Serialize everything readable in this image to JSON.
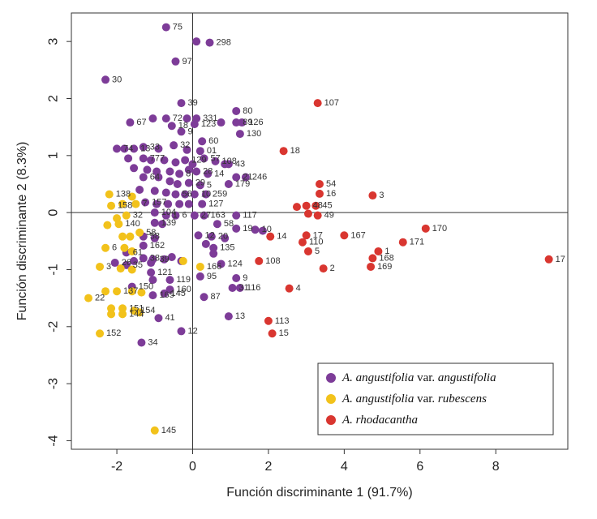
{
  "chart_data": {
    "type": "scatter",
    "xlabel": "Función discriminante 1 (91.7%)",
    "ylabel": "Función discriminante 2 (8.3%)",
    "xlim": [
      -3.2,
      9.9
    ],
    "ylim": [
      -4.15,
      3.5
    ],
    "xticks": [
      -2,
      0,
      2,
      4,
      6,
      8
    ],
    "yticks": [
      3,
      2,
      1,
      0,
      -1,
      -2,
      -3,
      -4
    ],
    "reference_lines": {
      "x": 0,
      "y": 0
    },
    "colors": {
      "purple": "#7d3c98",
      "yellow": "#f2c21b",
      "red": "#d93630"
    },
    "legend": {
      "position": "bottom-right",
      "entries": [
        {
          "color": "#7d3c98",
          "parts": [
            {
              "text": "A. angustifolia",
              "italic": true
            },
            {
              "text": " var. ",
              "italic": false
            },
            {
              "text": "angustifolia",
              "italic": true
            }
          ]
        },
        {
          "color": "#f2c21b",
          "parts": [
            {
              "text": "A. angustifolia",
              "italic": true
            },
            {
              "text": " var. ",
              "italic": false
            },
            {
              "text": "rubescens",
              "italic": true
            }
          ]
        },
        {
          "color": "#d93630",
          "parts": [
            {
              "text": "A. rhodacantha",
              "italic": true
            }
          ]
        }
      ]
    },
    "series": [
      {
        "name": "A. angustifolia var. angustifolia",
        "color": "#7d3c98",
        "points": [
          {
            "x": -0.7,
            "y": 3.25,
            "label": "75"
          },
          {
            "x": 0.1,
            "y": 3.0,
            "label": ""
          },
          {
            "x": 0.45,
            "y": 2.98,
            "label": "298"
          },
          {
            "x": -0.45,
            "y": 2.65,
            "label": "97"
          },
          {
            "x": -2.3,
            "y": 2.33,
            "label": "30"
          },
          {
            "x": -0.3,
            "y": 1.92,
            "label": "39"
          },
          {
            "x": 1.15,
            "y": 1.78,
            "label": "80"
          },
          {
            "x": -1.65,
            "y": 1.58,
            "label": "67"
          },
          {
            "x": -1.05,
            "y": 1.65,
            "label": ""
          },
          {
            "x": -0.7,
            "y": 1.65,
            "label": "72"
          },
          {
            "x": -0.15,
            "y": 1.65,
            "label": ""
          },
          {
            "x": 0.1,
            "y": 1.65,
            "label": "331"
          },
          {
            "x": 0.75,
            "y": 1.58,
            "label": ""
          },
          {
            "x": 1.15,
            "y": 1.58,
            "label": "89"
          },
          {
            "x": 1.3,
            "y": 1.58,
            "label": "126"
          },
          {
            "x": -0.55,
            "y": 1.52,
            "label": "18"
          },
          {
            "x": -0.3,
            "y": 1.42,
            "label": "9"
          },
          {
            "x": 0.05,
            "y": 1.55,
            "label": "123"
          },
          {
            "x": 1.25,
            "y": 1.38,
            "label": "130"
          },
          {
            "x": -2.0,
            "y": 1.12,
            "label": "74"
          },
          {
            "x": -1.8,
            "y": 1.12,
            "label": ""
          },
          {
            "x": -1.55,
            "y": 1.12,
            "label": "13"
          },
          {
            "x": -1.3,
            "y": 1.15,
            "label": "33"
          },
          {
            "x": -0.9,
            "y": 1.12,
            "label": ""
          },
          {
            "x": -0.5,
            "y": 1.18,
            "label": "32"
          },
          {
            "x": -0.15,
            "y": 1.1,
            "label": ""
          },
          {
            "x": 0.25,
            "y": 1.25,
            "label": "60"
          },
          {
            "x": 0.2,
            "y": 1.08,
            "label": "01"
          },
          {
            "x": -1.7,
            "y": 0.95,
            "label": ""
          },
          {
            "x": -1.3,
            "y": 0.95,
            "label": "777"
          },
          {
            "x": -1.1,
            "y": 0.92,
            "label": ""
          },
          {
            "x": -0.75,
            "y": 0.92,
            "label": ""
          },
          {
            "x": -0.45,
            "y": 0.88,
            "label": ""
          },
          {
            "x": -0.2,
            "y": 0.92,
            "label": "129"
          },
          {
            "x": 0.0,
            "y": 0.85,
            "label": ""
          },
          {
            "x": 0.3,
            "y": 0.95,
            "label": "57"
          },
          {
            "x": 0.6,
            "y": 0.9,
            "label": "108"
          },
          {
            "x": 0.85,
            "y": 0.85,
            "label": ""
          },
          {
            "x": 0.95,
            "y": 0.85,
            "label": "43"
          },
          {
            "x": -1.55,
            "y": 0.78,
            "label": ""
          },
          {
            "x": -1.2,
            "y": 0.75,
            "label": ""
          },
          {
            "x": -0.95,
            "y": 0.72,
            "label": ""
          },
          {
            "x": -0.6,
            "y": 0.72,
            "label": ""
          },
          {
            "x": -0.35,
            "y": 0.68,
            "label": "8"
          },
          {
            "x": -0.1,
            "y": 0.75,
            "label": ""
          },
          {
            "x": 0.1,
            "y": 0.72,
            "label": "28"
          },
          {
            "x": 0.4,
            "y": 0.68,
            "label": "14"
          },
          {
            "x": -1.3,
            "y": 0.62,
            "label": "64"
          },
          {
            "x": -0.9,
            "y": 0.62,
            "label": ""
          },
          {
            "x": -0.6,
            "y": 0.55,
            "label": ""
          },
          {
            "x": -0.4,
            "y": 0.5,
            "label": ""
          },
          {
            "x": -0.1,
            "y": 0.52,
            "label": "29"
          },
          {
            "x": 0.2,
            "y": 0.48,
            "label": "5"
          },
          {
            "x": 1.15,
            "y": 0.62,
            "label": "21"
          },
          {
            "x": 1.4,
            "y": 0.62,
            "label": "246"
          },
          {
            "x": 0.95,
            "y": 0.5,
            "label": "179"
          },
          {
            "x": -1.4,
            "y": 0.4,
            "label": ""
          },
          {
            "x": -1.0,
            "y": 0.38,
            "label": ""
          },
          {
            "x": -0.7,
            "y": 0.35,
            "label": ""
          },
          {
            "x": -0.45,
            "y": 0.32,
            "label": "56"
          },
          {
            "x": -0.2,
            "y": 0.32,
            "label": ""
          },
          {
            "x": 0.05,
            "y": 0.32,
            "label": "10"
          },
          {
            "x": 0.35,
            "y": 0.32,
            "label": "259"
          },
          {
            "x": -1.25,
            "y": 0.18,
            "label": "157"
          },
          {
            "x": -0.95,
            "y": 0.15,
            "label": ""
          },
          {
            "x": -0.65,
            "y": 0.15,
            "label": ""
          },
          {
            "x": -0.35,
            "y": 0.15,
            "label": ""
          },
          {
            "x": -0.1,
            "y": 0.15,
            "label": ""
          },
          {
            "x": 0.25,
            "y": 0.15,
            "label": "127"
          },
          {
            "x": -1.0,
            "y": 0.0,
            "label": "104"
          },
          {
            "x": -0.7,
            "y": -0.05,
            "label": "1"
          },
          {
            "x": -0.45,
            "y": -0.05,
            "label": "6"
          },
          {
            "x": 0.05,
            "y": -0.05,
            "label": "27"
          },
          {
            "x": 0.3,
            "y": -0.05,
            "label": "163"
          },
          {
            "x": 1.15,
            "y": -0.05,
            "label": "117"
          },
          {
            "x": -1.0,
            "y": -0.18,
            "label": "139"
          },
          {
            "x": -0.8,
            "y": -0.2,
            "label": ""
          },
          {
            "x": 0.65,
            "y": -0.2,
            "label": "58"
          },
          {
            "x": 1.15,
            "y": -0.28,
            "label": "19"
          },
          {
            "x": 1.65,
            "y": -0.3,
            "label": "10"
          },
          {
            "x": 1.85,
            "y": -0.32,
            "label": ""
          },
          {
            "x": -1.3,
            "y": -0.42,
            "label": "58"
          },
          {
            "x": -1.0,
            "y": -0.45,
            "label": ""
          },
          {
            "x": 0.15,
            "y": -0.4,
            "label": "12"
          },
          {
            "x": 0.5,
            "y": -0.42,
            "label": "20"
          },
          {
            "x": 0.85,
            "y": -0.45,
            "label": ""
          },
          {
            "x": -1.3,
            "y": -0.58,
            "label": "162"
          },
          {
            "x": 0.35,
            "y": -0.55,
            "label": ""
          },
          {
            "x": -1.75,
            "y": -0.7,
            "label": "61"
          },
          {
            "x": -1.3,
            "y": -0.8,
            "label": "38"
          },
          {
            "x": -1.05,
            "y": -0.82,
            "label": "39"
          },
          {
            "x": -0.75,
            "y": -0.82,
            "label": ""
          },
          {
            "x": -2.05,
            "y": -0.88,
            "label": "26"
          },
          {
            "x": -1.55,
            "y": -0.85,
            "label": ""
          },
          {
            "x": -1.75,
            "y": -0.92,
            "label": "35"
          },
          {
            "x": -1.1,
            "y": -0.88,
            "label": ""
          },
          {
            "x": -0.55,
            "y": -0.78,
            "label": ""
          },
          {
            "x": -0.3,
            "y": -0.85,
            "label": ""
          },
          {
            "x": 0.55,
            "y": -0.62,
            "label": "135"
          },
          {
            "x": 0.75,
            "y": -0.9,
            "label": "124"
          },
          {
            "x": 0.55,
            "y": -0.72,
            "label": ""
          },
          {
            "x": -1.1,
            "y": -1.05,
            "label": "121"
          },
          {
            "x": -1.05,
            "y": -1.18,
            "label": ""
          },
          {
            "x": -0.6,
            "y": -1.18,
            "label": "119"
          },
          {
            "x": -1.6,
            "y": -1.3,
            "label": "150"
          },
          {
            "x": -0.6,
            "y": -1.35,
            "label": "160"
          },
          {
            "x": 0.2,
            "y": -1.12,
            "label": "95"
          },
          {
            "x": 1.15,
            "y": -1.15,
            "label": "9"
          },
          {
            "x": 1.05,
            "y": -1.32,
            "label": "31"
          },
          {
            "x": 1.25,
            "y": -1.32,
            "label": "116"
          },
          {
            "x": -1.05,
            "y": -1.45,
            "label": "165"
          },
          {
            "x": -0.75,
            "y": -1.42,
            "label": "145"
          },
          {
            "x": 0.3,
            "y": -1.48,
            "label": "87"
          },
          {
            "x": -0.9,
            "y": -1.85,
            "label": "41"
          },
          {
            "x": 0.95,
            "y": -1.82,
            "label": "13"
          },
          {
            "x": -0.3,
            "y": -2.08,
            "label": "12"
          },
          {
            "x": -1.35,
            "y": -2.28,
            "label": "34"
          }
        ]
      },
      {
        "name": "A. angustifolia var. rubescens",
        "color": "#f2c21b",
        "points": [
          {
            "x": -2.2,
            "y": 0.32,
            "label": "138"
          },
          {
            "x": -2.15,
            "y": 0.12,
            "label": "158"
          },
          {
            "x": -1.85,
            "y": 0.15,
            "label": ""
          },
          {
            "x": -1.5,
            "y": 0.15,
            "label": "7"
          },
          {
            "x": -1.6,
            "y": 0.28,
            "label": ""
          },
          {
            "x": -2.0,
            "y": -0.1,
            "label": ""
          },
          {
            "x": -1.75,
            "y": -0.05,
            "label": "32"
          },
          {
            "x": -1.95,
            "y": -0.2,
            "label": "140"
          },
          {
            "x": -2.25,
            "y": -0.22,
            "label": ""
          },
          {
            "x": -1.85,
            "y": -0.42,
            "label": ""
          },
          {
            "x": -1.65,
            "y": -0.42,
            "label": ""
          },
          {
            "x": -1.4,
            "y": -0.35,
            "label": "58"
          },
          {
            "x": -2.3,
            "y": -0.62,
            "label": "6"
          },
          {
            "x": -1.8,
            "y": -0.62,
            "label": ""
          },
          {
            "x": -1.6,
            "y": -0.68,
            "label": ""
          },
          {
            "x": -2.45,
            "y": -0.95,
            "label": "3"
          },
          {
            "x": -1.9,
            "y": -0.98,
            "label": ""
          },
          {
            "x": -1.6,
            "y": -1.0,
            "label": ""
          },
          {
            "x": -0.25,
            "y": -0.85,
            "label": ""
          },
          {
            "x": 0.2,
            "y": -0.95,
            "label": "166"
          },
          {
            "x": -2.3,
            "y": -1.38,
            "label": ""
          },
          {
            "x": -2.0,
            "y": -1.38,
            "label": "137"
          },
          {
            "x": -1.6,
            "y": -1.38,
            "label": ""
          },
          {
            "x": -1.35,
            "y": -1.4,
            "label": ""
          },
          {
            "x": -2.75,
            "y": -1.5,
            "label": "22"
          },
          {
            "x": -2.15,
            "y": -1.68,
            "label": ""
          },
          {
            "x": -1.85,
            "y": -1.68,
            "label": "151"
          },
          {
            "x": -1.55,
            "y": -1.72,
            "label": "154"
          },
          {
            "x": -2.15,
            "y": -1.78,
            "label": ""
          },
          {
            "x": -1.85,
            "y": -1.78,
            "label": "144"
          },
          {
            "x": -1.4,
            "y": -1.75,
            "label": ""
          },
          {
            "x": -2.45,
            "y": -2.12,
            "label": "152"
          },
          {
            "x": -1.0,
            "y": -3.82,
            "label": "145"
          }
        ]
      },
      {
        "name": "A. rhodacantha",
        "color": "#d93630",
        "points": [
          {
            "x": 3.3,
            "y": 1.92,
            "label": "107"
          },
          {
            "x": 2.4,
            "y": 1.08,
            "label": "18"
          },
          {
            "x": 3.35,
            "y": 0.5,
            "label": "54"
          },
          {
            "x": 3.35,
            "y": 0.33,
            "label": "16"
          },
          {
            "x": 4.75,
            "y": 0.3,
            "label": "3"
          },
          {
            "x": 2.75,
            "y": 0.1,
            "label": ""
          },
          {
            "x": 3.0,
            "y": 0.12,
            "label": "48"
          },
          {
            "x": 3.25,
            "y": 0.12,
            "label": "45"
          },
          {
            "x": 3.05,
            "y": -0.02,
            "label": ""
          },
          {
            "x": 3.3,
            "y": -0.05,
            "label": "49"
          },
          {
            "x": 6.15,
            "y": -0.28,
            "label": "170"
          },
          {
            "x": 2.05,
            "y": -0.42,
            "label": "14"
          },
          {
            "x": 3.0,
            "y": -0.4,
            "label": "17"
          },
          {
            "x": 4.0,
            "y": -0.4,
            "label": "167"
          },
          {
            "x": 2.9,
            "y": -0.52,
            "label": "110"
          },
          {
            "x": 5.55,
            "y": -0.52,
            "label": "171"
          },
          {
            "x": 3.05,
            "y": -0.68,
            "label": "5"
          },
          {
            "x": 4.9,
            "y": -0.68,
            "label": "1"
          },
          {
            "x": 4.75,
            "y": -0.8,
            "label": "168"
          },
          {
            "x": 1.75,
            "y": -0.85,
            "label": "108"
          },
          {
            "x": 9.4,
            "y": -0.82,
            "label": "17"
          },
          {
            "x": 4.7,
            "y": -0.95,
            "label": "169"
          },
          {
            "x": 3.45,
            "y": -0.98,
            "label": "2"
          },
          {
            "x": 2.55,
            "y": -1.33,
            "label": "4"
          },
          {
            "x": 2.0,
            "y": -1.9,
            "label": "113"
          },
          {
            "x": 2.1,
            "y": -2.12,
            "label": "15"
          }
        ]
      }
    ]
  }
}
